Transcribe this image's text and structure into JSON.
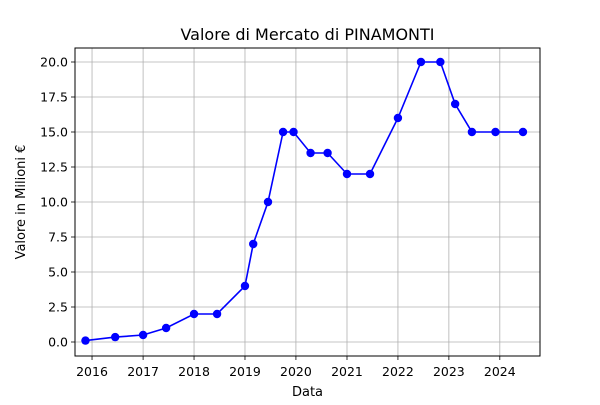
{
  "chart_data": {
    "type": "line",
    "title": "Valore di Mercato di PINAMONTI",
    "xlabel": "Data",
    "ylabel": "Valore in Milioni €",
    "x_ticks": [
      "2016",
      "2017",
      "2018",
      "2019",
      "2020",
      "2021",
      "2022",
      "2023",
      "2024"
    ],
    "y_ticks": [
      "0.0",
      "2.5",
      "5.0",
      "7.5",
      "10.0",
      "12.5",
      "15.0",
      "17.5",
      "20.0"
    ],
    "xlim": [
      "2015-09-01",
      "2024-10-15"
    ],
    "ylim": [
      -1.0,
      21.0
    ],
    "grid": true,
    "color": "#0000ff",
    "series": [
      {
        "x": [
          "2015-11-15",
          "2016-06-15",
          "2017-01-01",
          "2017-06-15",
          "2018-01-01",
          "2018-06-15",
          "2019-01-01",
          "2019-03-01",
          "2019-06-15",
          "2019-10-01",
          "2019-12-15",
          "2020-04-15",
          "2020-08-15",
          "2021-01-01",
          "2021-06-15",
          "2022-01-01",
          "2022-06-15",
          "2022-11-01",
          "2023-02-15",
          "2023-06-15",
          "2023-12-01",
          "2024-06-15"
        ],
        "y": [
          0.1,
          0.35,
          0.5,
          1.0,
          2.0,
          2.0,
          4.0,
          7.0,
          10.0,
          15.0,
          15.0,
          13.5,
          13.5,
          12.0,
          12.0,
          16.0,
          20.0,
          20.0,
          17.0,
          15.0,
          15.0,
          15.0
        ]
      }
    ]
  }
}
